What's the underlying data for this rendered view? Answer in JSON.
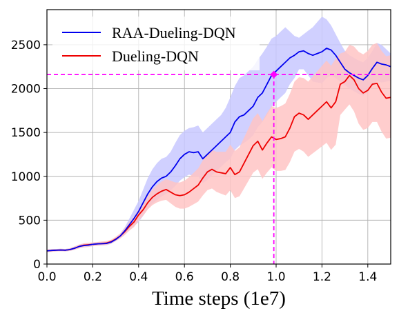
{
  "chart_data": {
    "type": "line",
    "title": "",
    "xlabel": "Time steps (1e7)",
    "ylabel": "",
    "xlim": [
      0,
      1.5
    ],
    "ylim": [
      0,
      2900
    ],
    "xticks": [
      0.0,
      0.2,
      0.4,
      0.6,
      0.8,
      1.0,
      1.2,
      1.4
    ],
    "xtick_labels": [
      "0.0",
      "0.2",
      "0.4",
      "0.6",
      "0.8",
      "1.0",
      "1.2",
      "1.4"
    ],
    "yticks": [
      0,
      500,
      1000,
      1500,
      2000,
      2500
    ],
    "ytick_labels": [
      "0",
      "500",
      "1000",
      "1500",
      "2000",
      "2500"
    ],
    "grid": true,
    "legend": {
      "placement": "top-left"
    },
    "series": [
      {
        "name": "RAA-Dueling-DQN",
        "color": "#0000ee",
        "band_color": "#c8c8ff",
        "x": [
          0.0,
          0.02,
          0.04,
          0.06,
          0.08,
          0.1,
          0.12,
          0.14,
          0.16,
          0.18,
          0.2,
          0.22,
          0.24,
          0.26,
          0.28,
          0.3,
          0.32,
          0.34,
          0.36,
          0.38,
          0.4,
          0.42,
          0.44,
          0.46,
          0.48,
          0.5,
          0.52,
          0.54,
          0.56,
          0.58,
          0.6,
          0.62,
          0.64,
          0.66,
          0.68,
          0.7,
          0.72,
          0.74,
          0.76,
          0.78,
          0.8,
          0.82,
          0.84,
          0.86,
          0.88,
          0.9,
          0.92,
          0.94,
          0.96,
          0.98,
          1.0,
          1.02,
          1.04,
          1.06,
          1.08,
          1.1,
          1.12,
          1.14,
          1.16,
          1.18,
          1.2,
          1.22,
          1.24,
          1.26,
          1.28,
          1.3,
          1.32,
          1.34,
          1.36,
          1.38,
          1.4,
          1.42,
          1.44,
          1.46,
          1.48,
          1.5
        ],
        "y": [
          150,
          155,
          158,
          160,
          158,
          165,
          180,
          200,
          210,
          215,
          225,
          230,
          232,
          235,
          250,
          280,
          320,
          380,
          450,
          520,
          600,
          700,
          800,
          880,
          940,
          980,
          1000,
          1050,
          1120,
          1200,
          1250,
          1280,
          1270,
          1280,
          1200,
          1250,
          1300,
          1350,
          1400,
          1450,
          1500,
          1620,
          1680,
          1700,
          1750,
          1800,
          1900,
          1950,
          2050,
          2150,
          2200,
          2250,
          2300,
          2350,
          2380,
          2420,
          2430,
          2400,
          2380,
          2400,
          2420,
          2460,
          2440,
          2380,
          2300,
          2220,
          2180,
          2150,
          2120,
          2100,
          2150,
          2230,
          2300,
          2280,
          2270,
          2250
        ],
        "upper": [
          165,
          170,
          172,
          175,
          172,
          180,
          200,
          220,
          230,
          235,
          245,
          250,
          252,
          255,
          270,
          300,
          350,
          420,
          520,
          620,
          720,
          850,
          980,
          1080,
          1150,
          1200,
          1220,
          1280,
          1380,
          1470,
          1520,
          1550,
          1560,
          1580,
          1500,
          1550,
          1600,
          1650,
          1700,
          1780,
          1900,
          2030,
          2120,
          2150,
          2200,
          2250,
          2330,
          2400,
          2480,
          2570,
          2600,
          2650,
          2700,
          2650,
          2600,
          2580,
          2620,
          2660,
          2700,
          2760,
          2820,
          2790,
          2720,
          2620,
          2520,
          2430,
          2380,
          2350,
          2320,
          2300,
          2350,
          2430,
          2520,
          2500,
          2450,
          2400
        ],
        "lower": [
          135,
          140,
          144,
          146,
          144,
          150,
          162,
          180,
          190,
          195,
          205,
          210,
          212,
          215,
          230,
          262,
          295,
          345,
          390,
          430,
          480,
          550,
          630,
          690,
          730,
          770,
          800,
          840,
          890,
          950,
          990,
          1020,
          1000,
          1000,
          920,
          960,
          1010,
          1060,
          1110,
          1160,
          1200,
          1300,
          1350,
          1380,
          1420,
          1470,
          1560,
          1620,
          1700,
          1790,
          1850,
          1900,
          1950,
          2050,
          2120,
          2220,
          2220,
          2150,
          2080,
          2070,
          2060,
          2120,
          2150,
          2120,
          2080,
          2040,
          2000,
          1970,
          1940,
          1920,
          1960,
          2030,
          2090,
          2070,
          2080,
          2090
        ]
      },
      {
        "name": "Dueling-DQN",
        "color": "#ee0000",
        "band_color": "#ffc4c4",
        "x": [
          0.0,
          0.02,
          0.04,
          0.06,
          0.08,
          0.1,
          0.12,
          0.14,
          0.16,
          0.18,
          0.2,
          0.22,
          0.24,
          0.26,
          0.28,
          0.3,
          0.32,
          0.34,
          0.36,
          0.38,
          0.4,
          0.42,
          0.44,
          0.46,
          0.48,
          0.5,
          0.52,
          0.54,
          0.56,
          0.58,
          0.6,
          0.62,
          0.64,
          0.66,
          0.68,
          0.7,
          0.72,
          0.74,
          0.76,
          0.78,
          0.8,
          0.82,
          0.84,
          0.86,
          0.88,
          0.9,
          0.92,
          0.94,
          0.96,
          0.98,
          1.0,
          1.02,
          1.04,
          1.06,
          1.08,
          1.1,
          1.12,
          1.14,
          1.16,
          1.18,
          1.2,
          1.22,
          1.24,
          1.26,
          1.28,
          1.3,
          1.32,
          1.34,
          1.36,
          1.38,
          1.4,
          1.42,
          1.44,
          1.46,
          1.48,
          1.5
        ],
        "y": [
          150,
          155,
          158,
          160,
          158,
          165,
          180,
          200,
          215,
          220,
          225,
          230,
          235,
          240,
          255,
          285,
          320,
          370,
          430,
          480,
          560,
          620,
          700,
          760,
          800,
          830,
          850,
          820,
          790,
          780,
          790,
          820,
          860,
          900,
          980,
          1050,
          1080,
          1050,
          1040,
          1030,
          1100,
          1020,
          1050,
          1150,
          1250,
          1350,
          1400,
          1300,
          1380,
          1450,
          1420,
          1430,
          1450,
          1550,
          1680,
          1720,
          1700,
          1650,
          1700,
          1750,
          1800,
          1850,
          1780,
          1850,
          2050,
          2080,
          2150,
          2100,
          2000,
          1950,
          1980,
          2050,
          2060,
          1960,
          1890,
          1900
        ],
        "upper": [
          165,
          170,
          172,
          175,
          172,
          180,
          200,
          222,
          237,
          242,
          247,
          252,
          257,
          262,
          277,
          310,
          350,
          410,
          480,
          540,
          625,
          690,
          780,
          850,
          900,
          940,
          970,
          950,
          930,
          930,
          950,
          990,
          1040,
          1090,
          1180,
          1260,
          1300,
          1280,
          1280,
          1280,
          1360,
          1290,
          1330,
          1440,
          1550,
          1660,
          1720,
          1630,
          1720,
          1800,
          1780,
          1800,
          1830,
          1940,
          2080,
          2130,
          2120,
          2080,
          2140,
          2200,
          2260,
          2320,
          2260,
          2340,
          2400,
          2420,
          2500,
          2480,
          2420,
          2390,
          2430,
          2500,
          2520,
          2430,
          2370,
          2380
        ],
        "lower": [
          135,
          140,
          144,
          146,
          144,
          150,
          162,
          178,
          193,
          198,
          203,
          208,
          213,
          218,
          233,
          262,
          292,
          332,
          382,
          422,
          495,
          552,
          622,
          672,
          702,
          722,
          732,
          692,
          652,
          632,
          632,
          652,
          682,
          712,
          782,
          842,
          862,
          822,
          802,
          782,
          842,
          752,
          772,
          862,
          952,
          1042,
          1082,
          972,
          1042,
          1102,
          1062,
          1062,
          1072,
          1162,
          1282,
          1312,
          1282,
          1222,
          1262,
          1302,
          1342,
          1382,
          1302,
          1362,
          1700,
          1760,
          1820,
          1740,
          1600,
          1530,
          1550,
          1620,
          1620,
          1510,
          1430,
          1440
        ]
      }
    ],
    "reference_lines": {
      "color": "#ff00ff",
      "horizontal_y": 2160,
      "vertical_x": 0.99,
      "marker": {
        "x": 0.99,
        "y": 2160
      }
    }
  }
}
